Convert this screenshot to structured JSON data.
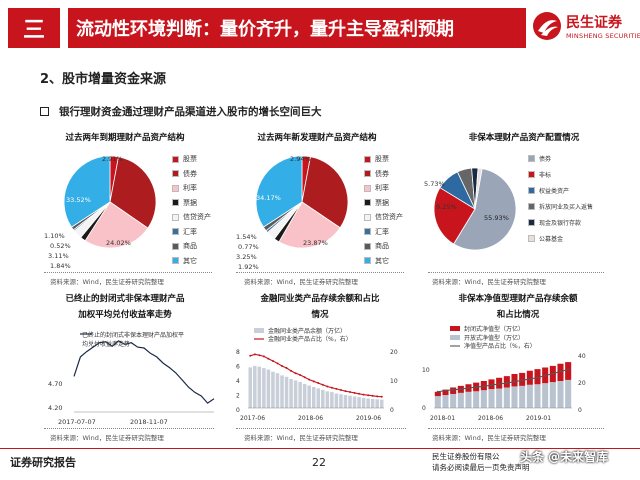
{
  "header": {
    "section_number": "三",
    "title": "流动性环境判断：量价齐升，量升主导盈利预期",
    "logo_cn": "民生证券",
    "logo_en": "MINSHENG SECURITIES",
    "brand_color": "#c8151d"
  },
  "section_title": "2、股市增量资金来源",
  "bullet": "银行理财资金通过理财产品渠道进入股市的增长空间巨大",
  "colors": {
    "stock": "#c8151d",
    "bond": "#ad1c1f",
    "rate": "#f9c2c8",
    "bill": "#1a1a1a",
    "credit": "#f4f4f4",
    "fx": "#3b6fa0",
    "commodity": "#5a5a5a",
    "other": "#33aee6"
  },
  "pie1": {
    "title": "过去两年到期理财产品资产结构",
    "legend": [
      "股票",
      "债券",
      "利率",
      "票据",
      "信贷资产",
      "汇率",
      "商品",
      "其它"
    ],
    "labels": [
      "2.91%",
      "24.02%",
      "33.52%",
      "1.10%",
      "0.52%",
      "3.11%",
      "1.84%"
    ],
    "source": "资料来源：Wind，民生证券研究院整理"
  },
  "pie2": {
    "title": "过去两年新发理财产品资产结构",
    "legend": [
      "股票",
      "债券",
      "利率",
      "票据",
      "信贷资产",
      "汇率",
      "商品",
      "其它"
    ],
    "labels": [
      "2.94%",
      "23.87%",
      "34.17%",
      "1.54%",
      "0.77%",
      "3.25%",
      "1.92%"
    ],
    "source": "资料来源：Wind，民生证券研究院整理"
  },
  "pie3": {
    "title": "非保本理财产品资产配置情况",
    "legend": [
      "债券",
      "非标",
      "权益类资产",
      "拆放同业及买入返售",
      "现金及银行存款",
      "公募基金"
    ],
    "labels": [
      "5.73%",
      "9.25%",
      "55.93%"
    ],
    "source": "资料来源：Wind，民生证券研究院整理"
  },
  "chart_data": [
    {
      "type": "pie",
      "title": "过去两年到期理财产品资产结构",
      "categories": [
        "股票",
        "债券",
        "利率",
        "票据",
        "信贷资产",
        "汇率",
        "商品",
        "其它"
      ],
      "values": [
        2.91,
        31.0,
        24.02,
        1.84,
        3.11,
        0.52,
        1.1,
        33.52
      ]
    },
    {
      "type": "pie",
      "title": "过去两年新发理财产品资产结构",
      "categories": [
        "股票",
        "债券",
        "利率",
        "票据",
        "信贷资产",
        "汇率",
        "商品",
        "其它"
      ],
      "values": [
        2.94,
        31.5,
        23.87,
        1.92,
        3.25,
        0.77,
        1.54,
        34.17
      ]
    },
    {
      "type": "pie",
      "title": "非保本理财产品资产配置情况",
      "categories": [
        "债券",
        "非标",
        "权益类资产",
        "拆放同业及买入返售",
        "现金及银行存款",
        "公募基金"
      ],
      "values": [
        55.93,
        25.0,
        9.25,
        5.73,
        2.5,
        1.59
      ]
    },
    {
      "type": "line",
      "title": "已终止的封闭式非保本理财产品加权平均兑付收益率走势",
      "series": [
        {
          "name": "已终止的封闭式非保本理财产品加权平均兑付收益率走势",
          "values": [
            4.4,
            4.62,
            4.68,
            4.73,
            4.78,
            4.79,
            4.74,
            4.8,
            4.76,
            4.78,
            4.73,
            4.72,
            4.66,
            4.62,
            4.55,
            4.5,
            4.44,
            4.36,
            4.28,
            4.22,
            4.18,
            4.1,
            4.15
          ]
        }
      ],
      "x_ticks": [
        "2017-07-07",
        "2018-11-07"
      ],
      "y_ticks": [
        "4.70",
        "4.20"
      ],
      "source": "资料来源：Wind，民生证券研究院整理"
    },
    {
      "type": "bar",
      "title": "金融同业类产品存续余额和占比情况",
      "series": [
        {
          "name": "金融同业类产品余额（万亿）",
          "values": [
            5.6,
            5.8,
            5.7,
            5.5,
            5.3,
            5.0,
            4.8,
            4.5,
            4.3,
            4.0,
            3.8,
            3.6,
            3.3,
            3.1,
            2.9,
            2.7,
            2.5,
            2.3,
            2.2,
            2.0,
            1.9,
            1.8,
            1.7,
            1.6,
            1.5,
            1.4,
            1.3,
            1.25,
            1.2,
            1.15
          ]
        },
        {
          "name": "金融同业类产品占比（%，右）",
          "values": [
            18,
            18.5,
            18.2,
            17.8,
            17,
            16.2,
            15.4,
            14.5,
            13.8,
            12.8,
            12,
            11.4,
            10.6,
            9.8,
            9.2,
            8.6,
            8,
            7.4,
            7,
            6.6,
            6.2,
            5.8,
            5.5,
            5.2,
            4.9,
            4.6,
            4.4,
            4.2,
            4.0,
            3.9
          ]
        }
      ],
      "x_ticks": [
        "2017-06",
        "2018-06",
        "2019-06"
      ],
      "y_ticks_left": [
        "8",
        "6",
        "4",
        "2",
        "0"
      ],
      "y_ticks_right": [
        "20",
        "10",
        "0"
      ],
      "source": "资料来源：Wind，民生证券研究院整理"
    },
    {
      "type": "bar",
      "title": "非保本净值型理财产品存续余额和占比情况",
      "series": [
        {
          "name": "封闭式净值型（万亿）",
          "values": [
            0.8,
            1.0,
            1.2,
            1.3,
            1.4,
            1.6,
            1.7,
            1.8,
            2.0,
            2.1,
            2.3,
            2.4,
            2.6,
            2.8,
            2.9,
            3.0,
            3.2,
            3.3
          ]
        },
        {
          "name": "开放式净值型（万亿）",
          "values": [
            2.2,
            2.4,
            2.6,
            2.8,
            3.0,
            3.1,
            3.3,
            3.5,
            3.6,
            3.8,
            4.0,
            4.1,
            4.3,
            4.4,
            4.6,
            4.8,
            5.0,
            5.2
          ]
        },
        {
          "name": "净值型产品占比（%，右）",
          "values": [
            12,
            13,
            13.5,
            14,
            14.8,
            15.5,
            16,
            17,
            17.8,
            18.5,
            19.5,
            20.5,
            21.5,
            22.5,
            24,
            25.5,
            27,
            28.5
          ]
        }
      ],
      "x_ticks": [
        "2018-01",
        "2018-06",
        "2019-01"
      ],
      "y_ticks_left": [
        "10",
        "0"
      ],
      "y_ticks_right": [
        "40",
        "20",
        "0"
      ],
      "source": "资料来源：Wind，民生证券研究院整理"
    }
  ],
  "line_panel": {
    "title_line1": "已终止的封闭式非保本理财产品",
    "title_line2": "加权平均兑付收益率走势",
    "legend": "已终止的封闭式非保本理财产品加权平",
    "legend2": "均兑付收益率走势",
    "y1": "4.70",
    "y2": "4.20",
    "x1": "2017-07-07",
    "x2": "2018-11-07",
    "source": "资料来源：Wind，民生证券研究院整理"
  },
  "bar1_panel": {
    "title_line1": "金融同业类产品存续余额和占比",
    "title_line2": "情况",
    "legend1": "金融同业类产品余额（万亿）",
    "legend2": "金融同业类产品占比（%，右）",
    "yl": [
      "8",
      "6",
      "4",
      "2",
      "0"
    ],
    "yr": [
      "20",
      "10",
      "0"
    ],
    "x": [
      "2017-06",
      "2018-06",
      "2019-06"
    ],
    "source": "资料来源：Wind，民生证券研究院整理"
  },
  "bar2_panel": {
    "title_line1": "非保本净值型理财产品存续余额",
    "title_line2": "和占比情况",
    "legend1": "封闭式净值型（万亿）",
    "legend2": "开放式净值型（万亿）",
    "legend3": "净值型产品占比（%，右）",
    "yl": [
      "10",
      "0"
    ],
    "yr": [
      "40",
      "20",
      "0"
    ],
    "x": [
      "2018-01",
      "2018-06",
      "2019-01"
    ],
    "source": "资料来源：Wind，民生证券研究院整理"
  },
  "footer": {
    "left": "证券研究报告",
    "page": "22",
    "right_line1": "民生证券股份有限公",
    "right_line2": "请务必阅读最后一页免责声明",
    "watermark": "头条 @未来智库"
  }
}
